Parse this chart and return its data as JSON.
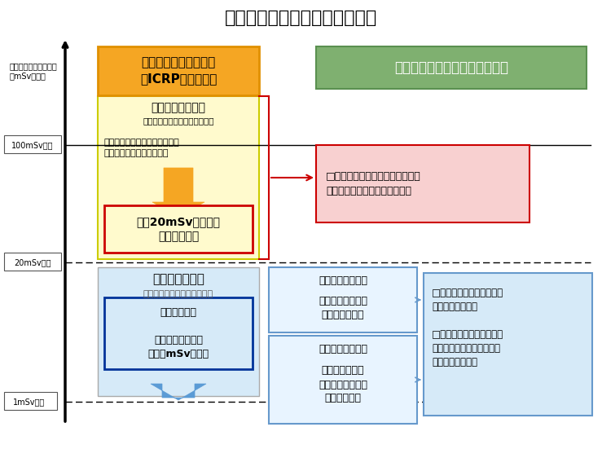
{
  "title": "除染実施に関する基本的考え方",
  "title_fontsize": 16,
  "bg_color": "#ffffff",
  "axis_label1": "縦軸：年間被ばく線量",
  "axis_label2": "［mSv／年］",
  "level_100": "100mSv／年",
  "level_20": "20mSv／年",
  "level_1": "1mSv／年",
  "box_icrp_text": "国際放射線防護委員会\n（ICRP）の考え方",
  "box_icrp_bg": "#f5a623",
  "box_icrp_border": "#e09000",
  "box_kinkyu_header": "緊急時被ばく状況",
  "box_kinkyu_sub": "［計画的避難区域、警戒区域］",
  "box_kinkyu_body": "原子力事故など緊急事態におい\nて、緊急活動を要する状況",
  "box_kinkyu_bg": "#fffacd",
  "box_kinkyu_border": "#cccc00",
  "box_20msv_text": "年間20mSv以下への\n移行を目指す",
  "box_20msv_border": "#cc0000",
  "box_genzai_header": "現存被ばく状況",
  "box_genzai_sub": "緊急事態後の長期被ばく状況",
  "box_genzai_bg": "#d6eaf8",
  "box_genzai_border": "#aaaaaa",
  "box_choki_text": "長期的な目標\n\n追加被ばく線量を\n年間１mSvとする",
  "box_choki_bg": "#d6eaf8",
  "box_choki_border": "#003399",
  "box_kinkyu_policy_text": "除染に関する緊急実施基本方針",
  "box_kinkyu_policy_bg": "#7fb070",
  "box_kinkyu_policy_border": "#5a9050",
  "box_red_text": "□　住民の帰還が実現するまで、\n　　国が主体的に除染を実施。",
  "box_red_bg": "#f8d0d0",
  "box_red_border": "#cc0000",
  "box_high_header": "［比較的高線量］",
  "box_high_body": "大規模作業を伴う\n面的除染が必要",
  "box_low_header": "［比較的低線量］",
  "box_low_body": "側溝や雨樋など\nホットスポットを\n集中的に除染",
  "box_blue_text": "□　市町村が、除染計画を\n　　作成し実施。\n\n□　国は、専門家の派遣、\n　　財政支援により円滑な\n　　除染を支援。",
  "box_blue_bg": "#d6eaf8",
  "box_blue_border": "#6699cc",
  "arrow_orange_color": "#f5a623",
  "arrow_blue_color": "#5b9bd5",
  "brace_color": "#cc0000"
}
